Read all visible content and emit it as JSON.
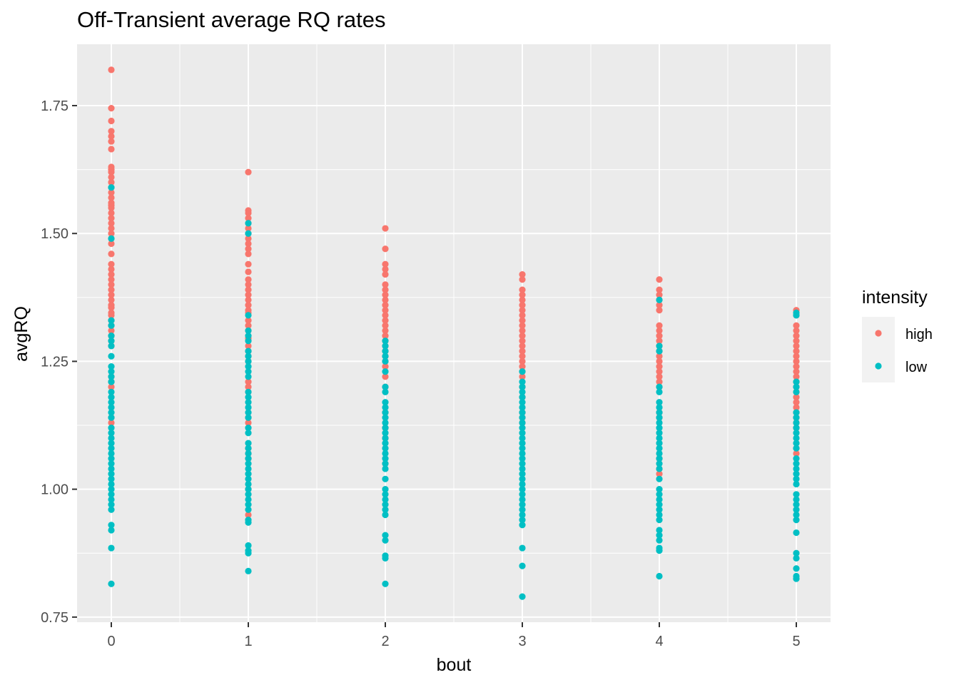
{
  "chart_data": {
    "type": "scatter",
    "title": "Off-Transient average RQ rates",
    "xlabel": "bout",
    "ylabel": "avgRQ",
    "x_ticks": [
      0,
      1,
      2,
      3,
      4,
      5
    ],
    "y_ticks": [
      0.75,
      1.0,
      1.25,
      1.5,
      1.75
    ],
    "y_tick_labels": [
      "0.75",
      "1.00",
      "1.25",
      "1.50",
      "1.75"
    ],
    "xlim": [
      -0.25,
      5.25
    ],
    "ylim": [
      0.74,
      1.87
    ],
    "grid": true,
    "legend_placement": "right",
    "legend_title": "intensity",
    "series": [
      {
        "name": "high",
        "color": "#F8766D",
        "points": [
          {
            "x": 0,
            "values": [
              1.82,
              1.745,
              1.72,
              1.7,
              1.69,
              1.68,
              1.665,
              1.63,
              1.625,
              1.62,
              1.61,
              1.6,
              1.59,
              1.58,
              1.57,
              1.56,
              1.555,
              1.55,
              1.54,
              1.53,
              1.52,
              1.51,
              1.5,
              1.49,
              1.48,
              1.46,
              1.44,
              1.43,
              1.42,
              1.41,
              1.4,
              1.39,
              1.38,
              1.37,
              1.36,
              1.355,
              1.345,
              1.34,
              1.33,
              1.32,
              1.31,
              1.3,
              1.29,
              1.28,
              1.22,
              1.21,
              1.2,
              1.14,
              1.13
            ]
          },
          {
            "x": 1,
            "values": [
              1.62,
              1.545,
              1.54,
              1.53,
              1.52,
              1.51,
              1.5,
              1.49,
              1.48,
              1.47,
              1.46,
              1.44,
              1.425,
              1.41,
              1.4,
              1.39,
              1.38,
              1.37,
              1.36,
              1.35,
              1.345,
              1.33,
              1.32,
              1.31,
              1.295,
              1.28,
              1.27,
              1.26,
              1.25,
              1.21,
              1.2,
              1.19,
              1.14,
              1.13,
              1.08,
              1.07,
              1.06,
              1.0,
              0.95
            ]
          },
          {
            "x": 2,
            "values": [
              1.51,
              1.47,
              1.44,
              1.43,
              1.42,
              1.4,
              1.39,
              1.38,
              1.37,
              1.36,
              1.35,
              1.34,
              1.33,
              1.32,
              1.31,
              1.3,
              1.29,
              1.28,
              1.27,
              1.26,
              1.25,
              1.24,
              1.22,
              1.2,
              1.15,
              1.12,
              1.1,
              1.05
            ]
          },
          {
            "x": 3,
            "values": [
              1.42,
              1.41,
              1.39,
              1.38,
              1.37,
              1.36,
              1.35,
              1.34,
              1.33,
              1.32,
              1.31,
              1.3,
              1.29,
              1.28,
              1.27,
              1.26,
              1.25,
              1.24,
              1.23,
              1.22,
              1.2,
              1.18,
              1.15,
              1.14,
              1.13
            ]
          },
          {
            "x": 4,
            "values": [
              1.41,
              1.39,
              1.38,
              1.37,
              1.36,
              1.35,
              1.32,
              1.31,
              1.3,
              1.29,
              1.28,
              1.27,
              1.26,
              1.25,
              1.24,
              1.23,
              1.22,
              1.21,
              1.2,
              1.15,
              1.14,
              1.06,
              1.04,
              1.03
            ]
          },
          {
            "x": 5,
            "values": [
              1.35,
              1.34,
              1.32,
              1.31,
              1.3,
              1.29,
              1.28,
              1.27,
              1.26,
              1.25,
              1.24,
              1.23,
              1.22,
              1.21,
              1.2,
              1.19,
              1.18,
              1.17,
              1.16,
              1.15,
              1.14,
              1.13,
              1.12,
              1.08,
              1.07
            ]
          }
        ]
      },
      {
        "name": "low",
        "color": "#00BFC4",
        "points": [
          {
            "x": 0,
            "values": [
              1.59,
              1.49,
              1.33,
              1.32,
              1.3,
              1.29,
              1.28,
              1.26,
              1.24,
              1.23,
              1.22,
              1.21,
              1.19,
              1.18,
              1.17,
              1.16,
              1.15,
              1.14,
              1.12,
              1.11,
              1.1,
              1.09,
              1.08,
              1.07,
              1.06,
              1.05,
              1.04,
              1.03,
              1.02,
              1.01,
              1.0,
              0.99,
              0.98,
              0.97,
              0.96,
              0.93,
              0.92,
              0.885,
              0.815
            ]
          },
          {
            "x": 1,
            "values": [
              1.52,
              1.5,
              1.34,
              1.31,
              1.3,
              1.29,
              1.27,
              1.26,
              1.25,
              1.24,
              1.23,
              1.22,
              1.19,
              1.18,
              1.17,
              1.16,
              1.15,
              1.14,
              1.12,
              1.11,
              1.09,
              1.08,
              1.07,
              1.06,
              1.05,
              1.04,
              1.03,
              1.02,
              1.01,
              1.0,
              0.99,
              0.98,
              0.97,
              0.96,
              0.94,
              0.935,
              0.89,
              0.88,
              0.875,
              0.84
            ]
          },
          {
            "x": 2,
            "values": [
              1.29,
              1.28,
              1.27,
              1.26,
              1.25,
              1.23,
              1.2,
              1.19,
              1.17,
              1.16,
              1.15,
              1.14,
              1.13,
              1.12,
              1.11,
              1.1,
              1.09,
              1.08,
              1.07,
              1.06,
              1.05,
              1.04,
              1.02,
              1.0,
              0.99,
              0.98,
              0.97,
              0.96,
              0.95,
              0.91,
              0.9,
              0.87,
              0.865,
              0.815
            ]
          },
          {
            "x": 3,
            "values": [
              1.23,
              1.21,
              1.2,
              1.19,
              1.18,
              1.17,
              1.16,
              1.15,
              1.14,
              1.13,
              1.12,
              1.11,
              1.1,
              1.09,
              1.08,
              1.07,
              1.06,
              1.05,
              1.04,
              1.03,
              1.02,
              1.01,
              1.0,
              0.99,
              0.98,
              0.97,
              0.96,
              0.95,
              0.94,
              0.93,
              0.885,
              0.85,
              0.79
            ]
          },
          {
            "x": 4,
            "values": [
              1.37,
              1.28,
              1.27,
              1.2,
              1.19,
              1.17,
              1.16,
              1.15,
              1.14,
              1.13,
              1.12,
              1.11,
              1.1,
              1.09,
              1.08,
              1.07,
              1.06,
              1.05,
              1.04,
              1.02,
              1.0,
              0.99,
              0.98,
              0.97,
              0.96,
              0.95,
              0.94,
              0.92,
              0.91,
              0.9,
              0.885,
              0.88,
              0.83
            ]
          },
          {
            "x": 5,
            "values": [
              1.345,
              1.34,
              1.21,
              1.2,
              1.19,
              1.15,
              1.14,
              1.13,
              1.12,
              1.11,
              1.1,
              1.09,
              1.08,
              1.06,
              1.05,
              1.04,
              1.03,
              1.02,
              1.01,
              0.99,
              0.98,
              0.97,
              0.96,
              0.95,
              0.94,
              0.915,
              0.875,
              0.865,
              0.845,
              0.83,
              0.825
            ]
          }
        ]
      }
    ]
  }
}
